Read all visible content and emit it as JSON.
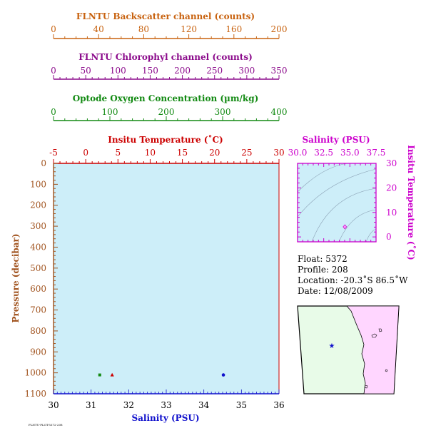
{
  "colors": {
    "backscatter": "#c8620f",
    "chlorophyll": "#8b0a8b",
    "oxygen": "#138a13",
    "temperature": "#cc0000",
    "pressure_axis": "#a0521d",
    "salinity_axis": "#1010cc",
    "ts_axis": "#cc00cc",
    "plot_bg": "#cdeef9",
    "map_sea": "#e8fbe8",
    "map_land": "#ffd6ff"
  },
  "chart_data": [
    {
      "type": "scatter",
      "name_ref": "main-profile",
      "y_axis": {
        "label": "Pressure (decibar)",
        "range": [
          0,
          1100
        ],
        "ticks": [
          0,
          100,
          200,
          300,
          400,
          500,
          600,
          700,
          800,
          900,
          1000,
          1100
        ],
        "inverted": true
      },
      "x_axes": [
        {
          "id": "salinity",
          "label": "Salinity (PSU)",
          "range": [
            30,
            36
          ],
          "ticks": [
            30,
            31,
            32,
            33,
            34,
            35,
            36
          ],
          "position": "bottom"
        },
        {
          "id": "temperature",
          "label": "Insitu Temperature (˚C)",
          "range": [
            -5,
            30
          ],
          "ticks": [
            -5,
            0,
            5,
            10,
            15,
            20,
            25,
            30
          ],
          "position": "top"
        },
        {
          "id": "oxygen",
          "label": "Optode Oxygen Concentration (µm/kg)",
          "range": [
            0,
            400
          ],
          "ticks": [
            0,
            100,
            200,
            300,
            400
          ],
          "position": "top"
        },
        {
          "id": "chlorophyll",
          "label": "FLNTU Chlorophyl channel (counts)",
          "range": [
            0,
            350
          ],
          "ticks": [
            0,
            50,
            100,
            150,
            200,
            250,
            300,
            350
          ],
          "position": "top"
        },
        {
          "id": "backscatter",
          "label": "FLNTU Backscatter channel (counts)",
          "range": [
            0,
            200
          ],
          "ticks": [
            0,
            40,
            80,
            120,
            160,
            200
          ],
          "position": "top"
        }
      ],
      "series": [
        {
          "axis": "salinity",
          "marker": "circle",
          "points": [
            {
              "x": 34.52,
              "y": 1010
            }
          ]
        },
        {
          "axis": "temperature",
          "marker": "triangle",
          "points": [
            {
              "x": 4.1,
              "y": 1010
            }
          ]
        },
        {
          "axis": "oxygen",
          "marker": "square",
          "points": [
            {
              "x": 82,
              "y": 1010
            }
          ]
        }
      ],
      "grid": false
    },
    {
      "type": "scatter",
      "name_ref": "ts-diagram",
      "x_axis": {
        "label": "Salinity (PSU)",
        "range": [
          30,
          37.5
        ],
        "ticks": [
          30.0,
          32.5,
          35.0,
          37.5
        ],
        "tick_labels": [
          "30.0",
          "32.5",
          "35.0",
          "37.5"
        ]
      },
      "y_axis": {
        "label": "Insitu Temperature (˚C)",
        "range": [
          -2,
          30
        ],
        "ticks": [
          0,
          10,
          20,
          30
        ]
      },
      "points": [
        {
          "x": 34.52,
          "y": 4.1
        }
      ],
      "contours": "density isopleths"
    }
  ],
  "info": {
    "float": "Float:  5372",
    "profile": "Profile:  208",
    "location": "Location:  -20.3˚S  86.5˚W",
    "date": "Date:  12/08/2009"
  },
  "map": {
    "float_position": {
      "lon": -86.5,
      "lat": -20.3
    },
    "marker_icon": "star-icon"
  },
  "footer_text": "FLNTU-PLOT-5372-208"
}
